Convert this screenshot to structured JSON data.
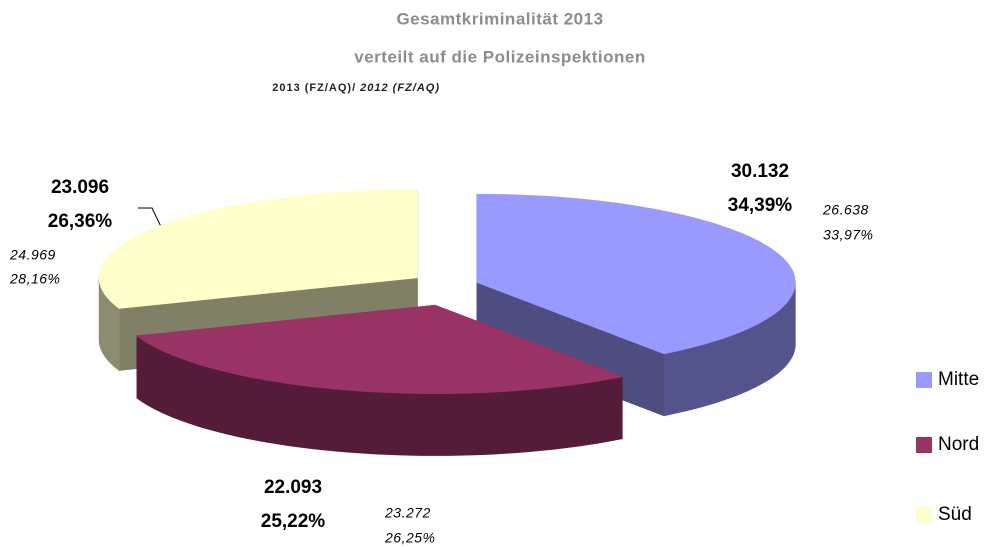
{
  "chart_data": {
    "type": "pie3d",
    "title": "Gesamtkriminalität 2013",
    "title_line2": "verteilt auf die Polizeinspektionen",
    "subtitle": "2013 (FZ/AQ)/",
    "subtitle_italic": "2012 (FZ/AQ)",
    "categories": [
      "Mitte",
      "Nord",
      "Süd"
    ],
    "colors": [
      "#9999ff",
      "#993366",
      "#ffffcc"
    ],
    "values": [
      30132,
      22093,
      23096
    ],
    "value_labels": [
      "30.132",
      "22.093",
      "23.096"
    ],
    "percentages": [
      34.39,
      25.22,
      26.36
    ],
    "percentage_labels": [
      "34,39%",
      "25,22%",
      "26,36%"
    ],
    "values_2012": [
      26638,
      23272,
      24969
    ],
    "value_labels_2012": [
      "26.638",
      "23.272",
      "24.969"
    ],
    "percentages_2012": [
      33.97,
      26.25,
      28.16
    ],
    "percentage_labels_2012": [
      "33,97%",
      "26,25%",
      "28,16%"
    ],
    "legend": "right"
  }
}
